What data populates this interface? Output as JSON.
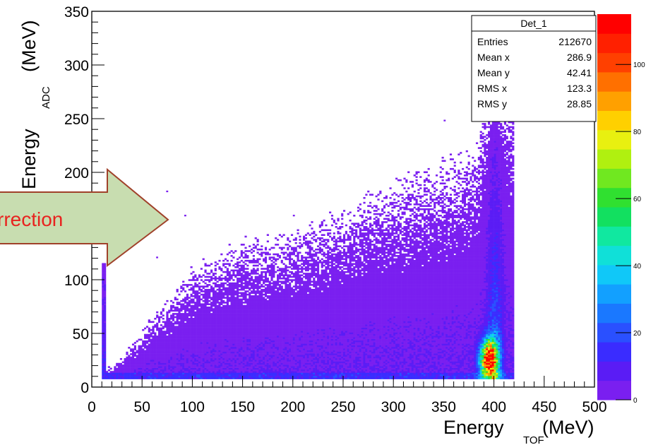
{
  "chart_data": {
    "type": "heatmap",
    "title": "",
    "xlabel": {
      "main": "Energy",
      "sub": "TOF",
      "unit": "(MeV)"
    },
    "ylabel": {
      "main": "Energy",
      "sub": "ADC",
      "unit": "(MeV)"
    },
    "xlim": [
      0,
      500
    ],
    "ylim": [
      0,
      350
    ],
    "zlim": [
      0,
      115
    ],
    "x_ticks": [
      "0",
      "50",
      "100",
      "150",
      "200",
      "250",
      "300",
      "350",
      "400",
      "450",
      "500"
    ],
    "y_ticks": [
      "0",
      "50",
      "100",
      "150",
      "200",
      "250",
      "300",
      "350"
    ],
    "z_ticks": [
      "0",
      "20",
      "40",
      "60",
      "80",
      "100"
    ],
    "colors": {
      "palette": [
        "#7a1ff0",
        "#5a1cf5",
        "#3a2cff",
        "#2a50ff",
        "#1a78ff",
        "#12a0ff",
        "#10c8f8",
        "#10e0d8",
        "#10e8a0",
        "#12e060",
        "#30e030",
        "#70e820",
        "#b0f010",
        "#e8f010",
        "#ffd000",
        "#ffa000",
        "#ff7000",
        "#ff4000",
        "#ff2000",
        "#ff0000"
      ]
    },
    "regions": [
      {
        "name": "main band",
        "x_range": [
          15,
          420
        ],
        "y_floor": 8,
        "y_ceiling_at_x": [
          [
            20,
            15
          ],
          [
            60,
            50
          ],
          [
            100,
            85
          ],
          [
            150,
            105
          ],
          [
            200,
            110
          ],
          [
            300,
            145
          ],
          [
            380,
            170
          ],
          [
            400,
            230
          ]
        ]
      },
      {
        "name": "vertical stripe",
        "x": 12,
        "y_range": [
          8,
          115
        ]
      },
      {
        "name": "punch-through peak",
        "x_range": [
          380,
          412
        ],
        "y_range": [
          8,
          250
        ],
        "max_at": [
          395,
          25
        ]
      }
    ]
  },
  "stats_box": {
    "title": "Det_1",
    "rows": [
      {
        "label": "Entries",
        "value": "212670"
      },
      {
        "label": "Mean x",
        "value": "286.9"
      },
      {
        "label": "Mean y",
        "value": "42.41"
      },
      {
        "label": "RMS x",
        "value": "123.3"
      },
      {
        "label": "RMS y",
        "value": "28.85"
      }
    ]
  },
  "annotation": {
    "text": "rrection",
    "fill": "#c8ddb0",
    "stroke": "#a0412a"
  }
}
